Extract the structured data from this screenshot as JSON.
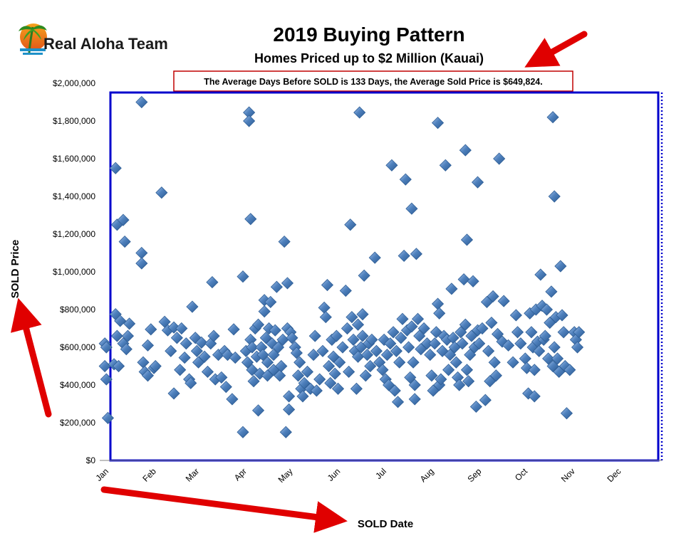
{
  "logo": {
    "text": "Real Aloha Team"
  },
  "chart_data": {
    "type": "scatter",
    "title": "2019 Buying Pattern",
    "subtitle": "Homes Priced up to $2 Million (Kauai)",
    "annotation": "The Average Days Before SOLD is 133 Days, the Average Sold Price is $649,824.",
    "xlabel": "SOLD Date",
    "ylabel": "SOLD Price",
    "ylim": [
      0,
      2000000
    ],
    "y_ticks": [
      0,
      200000,
      400000,
      600000,
      800000,
      1000000,
      1200000,
      1400000,
      1600000,
      1800000,
      2000000
    ],
    "y_tick_labels": [
      "$0",
      "$200,000",
      "$400,000",
      "$600,000",
      "$800,000",
      "$1,000,000",
      "$1,200,000",
      "$1,400,000",
      "$1,600,000",
      "$1,800,000",
      "$2,000,000"
    ],
    "x_tick_labels": [
      "Jan",
      "Feb",
      "Mar",
      "Apr",
      "May",
      "Jun",
      "Jul",
      "Aug",
      "Sep",
      "Oct",
      "Nov",
      "Dec"
    ],
    "x_ticks": [
      "2019-01-01",
      "2019-02-01",
      "2019-03-01",
      "2019-04-01",
      "2019-05-01",
      "2019-06-01",
      "2019-07-01",
      "2019-08-01",
      "2019-09-01",
      "2019-10-01",
      "2019-11-01",
      "2019-12-01"
    ],
    "xlim": [
      "2019-01-01",
      "2019-12-31"
    ],
    "grid": false,
    "marker": "diamond",
    "marker_color": "#4f81bd",
    "plot_border_color": "#0000cc",
    "points": [
      {
        "x": "2019-01-02",
        "y": 620000
      },
      {
        "x": "2019-01-02",
        "y": 500000
      },
      {
        "x": "2019-01-03",
        "y": 430000
      },
      {
        "x": "2019-01-04",
        "y": 225000
      },
      {
        "x": "2019-01-03",
        "y": 600000
      },
      {
        "x": "2019-01-09",
        "y": 1550000
      },
      {
        "x": "2019-01-10",
        "y": 1250000
      },
      {
        "x": "2019-01-09",
        "y": 775000
      },
      {
        "x": "2019-01-10",
        "y": 660000
      },
      {
        "x": "2019-01-08",
        "y": 510000
      },
      {
        "x": "2019-01-11",
        "y": 500000
      },
      {
        "x": "2019-01-14",
        "y": 1275000
      },
      {
        "x": "2019-01-15",
        "y": 1160000
      },
      {
        "x": "2019-01-12",
        "y": 740000
      },
      {
        "x": "2019-01-14",
        "y": 620000
      },
      {
        "x": "2019-01-16",
        "y": 590000
      },
      {
        "x": "2019-01-17",
        "y": 660000
      },
      {
        "x": "2019-01-18",
        "y": 725000
      },
      {
        "x": "2019-01-26",
        "y": 1900000
      },
      {
        "x": "2019-01-26",
        "y": 1100000
      },
      {
        "x": "2019-01-26",
        "y": 1045000
      },
      {
        "x": "2019-01-27",
        "y": 520000
      },
      {
        "x": "2019-01-28",
        "y": 470000
      },
      {
        "x": "2019-01-30",
        "y": 610000
      },
      {
        "x": "2019-01-30",
        "y": 450000
      },
      {
        "x": "2019-02-01",
        "y": 695000
      },
      {
        "x": "2019-02-03",
        "y": 490000
      },
      {
        "x": "2019-02-04",
        "y": 500000
      },
      {
        "x": "2019-02-08",
        "y": 1420000
      },
      {
        "x": "2019-02-10",
        "y": 735000
      },
      {
        "x": "2019-02-12",
        "y": 690000
      },
      {
        "x": "2019-02-14",
        "y": 580000
      },
      {
        "x": "2019-02-16",
        "y": 355000
      },
      {
        "x": "2019-02-16",
        "y": 705000
      },
      {
        "x": "2019-02-18",
        "y": 650000
      },
      {
        "x": "2019-02-20",
        "y": 480000
      },
      {
        "x": "2019-02-21",
        "y": 700000
      },
      {
        "x": "2019-02-23",
        "y": 545000
      },
      {
        "x": "2019-02-24",
        "y": 620000
      },
      {
        "x": "2019-02-26",
        "y": 430000
      },
      {
        "x": "2019-02-27",
        "y": 410000
      },
      {
        "x": "2019-02-28",
        "y": 815000
      },
      {
        "x": "2019-03-02",
        "y": 650000
      },
      {
        "x": "2019-03-03",
        "y": 580000
      },
      {
        "x": "2019-03-04",
        "y": 520000
      },
      {
        "x": "2019-03-06",
        "y": 625000
      },
      {
        "x": "2019-03-08",
        "y": 550000
      },
      {
        "x": "2019-03-10",
        "y": 470000
      },
      {
        "x": "2019-03-12",
        "y": 620000
      },
      {
        "x": "2019-03-13",
        "y": 945000
      },
      {
        "x": "2019-03-14",
        "y": 660000
      },
      {
        "x": "2019-03-15",
        "y": 430000
      },
      {
        "x": "2019-03-17",
        "y": 560000
      },
      {
        "x": "2019-03-19",
        "y": 440000
      },
      {
        "x": "2019-03-21",
        "y": 580000
      },
      {
        "x": "2019-03-22",
        "y": 390000
      },
      {
        "x": "2019-03-23",
        "y": 560000
      },
      {
        "x": "2019-03-26",
        "y": 325000
      },
      {
        "x": "2019-03-27",
        "y": 695000
      },
      {
        "x": "2019-03-28",
        "y": 545000
      },
      {
        "x": "2019-04-02",
        "y": 150000
      },
      {
        "x": "2019-04-02",
        "y": 975000
      },
      {
        "x": "2019-04-04",
        "y": 580000
      },
      {
        "x": "2019-04-05",
        "y": 520000
      },
      {
        "x": "2019-04-06",
        "y": 1845000
      },
      {
        "x": "2019-04-06",
        "y": 1800000
      },
      {
        "x": "2019-04-07",
        "y": 1280000
      },
      {
        "x": "2019-04-07",
        "y": 640000
      },
      {
        "x": "2019-04-08",
        "y": 600000
      },
      {
        "x": "2019-04-08",
        "y": 480000
      },
      {
        "x": "2019-04-09",
        "y": 420000
      },
      {
        "x": "2019-04-10",
        "y": 700000
      },
      {
        "x": "2019-04-11",
        "y": 550000
      },
      {
        "x": "2019-04-12",
        "y": 265000
      },
      {
        "x": "2019-04-12",
        "y": 720000
      },
      {
        "x": "2019-04-13",
        "y": 460000
      },
      {
        "x": "2019-04-14",
        "y": 600000
      },
      {
        "x": "2019-04-15",
        "y": 560000
      },
      {
        "x": "2019-04-16",
        "y": 850000
      },
      {
        "x": "2019-04-16",
        "y": 790000
      },
      {
        "x": "2019-04-17",
        "y": 650000
      },
      {
        "x": "2019-04-18",
        "y": 520000
      },
      {
        "x": "2019-04-18",
        "y": 450000
      },
      {
        "x": "2019-04-19",
        "y": 700000
      },
      {
        "x": "2019-04-20",
        "y": 840000
      },
      {
        "x": "2019-04-21",
        "y": 620000
      },
      {
        "x": "2019-04-22",
        "y": 560000
      },
      {
        "x": "2019-04-22",
        "y": 480000
      },
      {
        "x": "2019-04-23",
        "y": 690000
      },
      {
        "x": "2019-04-24",
        "y": 920000
      },
      {
        "x": "2019-04-25",
        "y": 600000
      },
      {
        "x": "2019-04-26",
        "y": 450000
      },
      {
        "x": "2019-04-27",
        "y": 500000
      },
      {
        "x": "2019-04-28",
        "y": 640000
      },
      {
        "x": "2019-04-29",
        "y": 1160000
      },
      {
        "x": "2019-04-30",
        "y": 150000
      },
      {
        "x": "2019-05-01",
        "y": 940000
      },
      {
        "x": "2019-05-01",
        "y": 700000
      },
      {
        "x": "2019-05-02",
        "y": 270000
      },
      {
        "x": "2019-05-02",
        "y": 340000
      },
      {
        "x": "2019-05-03",
        "y": 680000
      },
      {
        "x": "2019-05-04",
        "y": 650000
      },
      {
        "x": "2019-05-06",
        "y": 600000
      },
      {
        "x": "2019-05-07",
        "y": 570000
      },
      {
        "x": "2019-05-08",
        "y": 450000
      },
      {
        "x": "2019-05-09",
        "y": 520000
      },
      {
        "x": "2019-05-10",
        "y": 380000
      },
      {
        "x": "2019-05-11",
        "y": 340000
      },
      {
        "x": "2019-05-12",
        "y": 410000
      },
      {
        "x": "2019-05-14",
        "y": 470000
      },
      {
        "x": "2019-05-16",
        "y": 380000
      },
      {
        "x": "2019-05-18",
        "y": 560000
      },
      {
        "x": "2019-05-19",
        "y": 660000
      },
      {
        "x": "2019-05-20",
        "y": 370000
      },
      {
        "x": "2019-05-22",
        "y": 430000
      },
      {
        "x": "2019-05-24",
        "y": 580000
      },
      {
        "x": "2019-05-25",
        "y": 810000
      },
      {
        "x": "2019-05-26",
        "y": 760000
      },
      {
        "x": "2019-05-27",
        "y": 930000
      },
      {
        "x": "2019-05-28",
        "y": 500000
      },
      {
        "x": "2019-05-29",
        "y": 410000
      },
      {
        "x": "2019-05-30",
        "y": 640000
      },
      {
        "x": "2019-05-31",
        "y": 550000
      },
      {
        "x": "2019-06-01",
        "y": 460000
      },
      {
        "x": "2019-06-02",
        "y": 660000
      },
      {
        "x": "2019-06-03",
        "y": 380000
      },
      {
        "x": "2019-06-04",
        "y": 520000
      },
      {
        "x": "2019-06-06",
        "y": 600000
      },
      {
        "x": "2019-06-08",
        "y": 900000
      },
      {
        "x": "2019-06-09",
        "y": 700000
      },
      {
        "x": "2019-06-10",
        "y": 470000
      },
      {
        "x": "2019-06-11",
        "y": 1250000
      },
      {
        "x": "2019-06-12",
        "y": 760000
      },
      {
        "x": "2019-06-13",
        "y": 640000
      },
      {
        "x": "2019-06-14",
        "y": 580000
      },
      {
        "x": "2019-06-15",
        "y": 380000
      },
      {
        "x": "2019-06-16",
        "y": 720000
      },
      {
        "x": "2019-06-16",
        "y": 550000
      },
      {
        "x": "2019-06-17",
        "y": 1845000
      },
      {
        "x": "2019-06-18",
        "y": 600000
      },
      {
        "x": "2019-06-19",
        "y": 660000
      },
      {
        "x": "2019-06-19",
        "y": 775000
      },
      {
        "x": "2019-06-20",
        "y": 980000
      },
      {
        "x": "2019-06-21",
        "y": 450000
      },
      {
        "x": "2019-06-22",
        "y": 560000
      },
      {
        "x": "2019-06-23",
        "y": 620000
      },
      {
        "x": "2019-06-24",
        "y": 500000
      },
      {
        "x": "2019-06-25",
        "y": 640000
      },
      {
        "x": "2019-06-27",
        "y": 1075000
      },
      {
        "x": "2019-06-28",
        "y": 580000
      },
      {
        "x": "2019-06-30",
        "y": 520000
      },
      {
        "x": "2019-07-02",
        "y": 480000
      },
      {
        "x": "2019-07-03",
        "y": 640000
      },
      {
        "x": "2019-07-04",
        "y": 430000
      },
      {
        "x": "2019-07-05",
        "y": 560000
      },
      {
        "x": "2019-07-06",
        "y": 400000
      },
      {
        "x": "2019-07-07",
        "y": 620000
      },
      {
        "x": "2019-07-08",
        "y": 1565000
      },
      {
        "x": "2019-07-09",
        "y": 680000
      },
      {
        "x": "2019-07-10",
        "y": 370000
      },
      {
        "x": "2019-07-11",
        "y": 580000
      },
      {
        "x": "2019-07-12",
        "y": 310000
      },
      {
        "x": "2019-07-13",
        "y": 520000
      },
      {
        "x": "2019-07-14",
        "y": 650000
      },
      {
        "x": "2019-07-15",
        "y": 750000
      },
      {
        "x": "2019-07-16",
        "y": 1085000
      },
      {
        "x": "2019-07-17",
        "y": 1490000
      },
      {
        "x": "2019-07-18",
        "y": 690000
      },
      {
        "x": "2019-07-19",
        "y": 600000
      },
      {
        "x": "2019-07-20",
        "y": 440000
      },
      {
        "x": "2019-07-21",
        "y": 1335000
      },
      {
        "x": "2019-07-21",
        "y": 710000
      },
      {
        "x": "2019-07-22",
        "y": 520000
      },
      {
        "x": "2019-07-23",
        "y": 400000
      },
      {
        "x": "2019-07-23",
        "y": 325000
      },
      {
        "x": "2019-07-24",
        "y": 1095000
      },
      {
        "x": "2019-07-25",
        "y": 750000
      },
      {
        "x": "2019-07-26",
        "y": 660000
      },
      {
        "x": "2019-07-27",
        "y": 590000
      },
      {
        "x": "2019-07-29",
        "y": 700000
      },
      {
        "x": "2019-07-31",
        "y": 620000
      },
      {
        "x": "2019-08-02",
        "y": 560000
      },
      {
        "x": "2019-08-03",
        "y": 450000
      },
      {
        "x": "2019-08-04",
        "y": 370000
      },
      {
        "x": "2019-08-05",
        "y": 620000
      },
      {
        "x": "2019-08-06",
        "y": 680000
      },
      {
        "x": "2019-08-07",
        "y": 1790000
      },
      {
        "x": "2019-08-07",
        "y": 830000
      },
      {
        "x": "2019-08-08",
        "y": 780000
      },
      {
        "x": "2019-08-08",
        "y": 400000
      },
      {
        "x": "2019-08-09",
        "y": 430000
      },
      {
        "x": "2019-08-10",
        "y": 580000
      },
      {
        "x": "2019-08-11",
        "y": 660000
      },
      {
        "x": "2019-08-12",
        "y": 1565000
      },
      {
        "x": "2019-08-13",
        "y": 640000
      },
      {
        "x": "2019-08-14",
        "y": 480000
      },
      {
        "x": "2019-08-15",
        "y": 560000
      },
      {
        "x": "2019-08-16",
        "y": 910000
      },
      {
        "x": "2019-08-17",
        "y": 650000
      },
      {
        "x": "2019-08-18",
        "y": 600000
      },
      {
        "x": "2019-08-19",
        "y": 520000
      },
      {
        "x": "2019-08-20",
        "y": 440000
      },
      {
        "x": "2019-08-21",
        "y": 400000
      },
      {
        "x": "2019-08-22",
        "y": 680000
      },
      {
        "x": "2019-08-23",
        "y": 620000
      },
      {
        "x": "2019-08-24",
        "y": 960000
      },
      {
        "x": "2019-08-25",
        "y": 1645000
      },
      {
        "x": "2019-08-25",
        "y": 720000
      },
      {
        "x": "2019-08-26",
        "y": 1170000
      },
      {
        "x": "2019-08-26",
        "y": 480000
      },
      {
        "x": "2019-08-27",
        "y": 420000
      },
      {
        "x": "2019-08-28",
        "y": 560000
      },
      {
        "x": "2019-08-29",
        "y": 660000
      },
      {
        "x": "2019-08-30",
        "y": 950000
      },
      {
        "x": "2019-08-31",
        "y": 600000
      },
      {
        "x": "2019-09-01",
        "y": 285000
      },
      {
        "x": "2019-09-02",
        "y": 1475000
      },
      {
        "x": "2019-09-02",
        "y": 690000
      },
      {
        "x": "2019-09-03",
        "y": 620000
      },
      {
        "x": "2019-09-05",
        "y": 700000
      },
      {
        "x": "2019-09-07",
        "y": 320000
      },
      {
        "x": "2019-09-08",
        "y": 840000
      },
      {
        "x": "2019-09-09",
        "y": 580000
      },
      {
        "x": "2019-09-10",
        "y": 420000
      },
      {
        "x": "2019-09-11",
        "y": 730000
      },
      {
        "x": "2019-09-12",
        "y": 870000
      },
      {
        "x": "2019-09-13",
        "y": 520000
      },
      {
        "x": "2019-09-14",
        "y": 450000
      },
      {
        "x": "2019-09-15",
        "y": 670000
      },
      {
        "x": "2019-09-16",
        "y": 1600000
      },
      {
        "x": "2019-09-18",
        "y": 630000
      },
      {
        "x": "2019-09-19",
        "y": 845000
      },
      {
        "x": "2019-09-22",
        "y": 610000
      },
      {
        "x": "2019-09-25",
        "y": 520000
      },
      {
        "x": "2019-09-27",
        "y": 770000
      },
      {
        "x": "2019-09-28",
        "y": 680000
      },
      {
        "x": "2019-09-30",
        "y": 620000
      },
      {
        "x": "2019-10-03",
        "y": 540000
      },
      {
        "x": "2019-10-04",
        "y": 490000
      },
      {
        "x": "2019-10-05",
        "y": 355000
      },
      {
        "x": "2019-10-06",
        "y": 780000
      },
      {
        "x": "2019-10-07",
        "y": 680000
      },
      {
        "x": "2019-10-08",
        "y": 600000
      },
      {
        "x": "2019-10-09",
        "y": 340000
      },
      {
        "x": "2019-10-09",
        "y": 480000
      },
      {
        "x": "2019-10-10",
        "y": 800000
      },
      {
        "x": "2019-10-11",
        "y": 630000
      },
      {
        "x": "2019-10-12",
        "y": 580000
      },
      {
        "x": "2019-10-13",
        "y": 985000
      },
      {
        "x": "2019-10-14",
        "y": 820000
      },
      {
        "x": "2019-10-15",
        "y": 640000
      },
      {
        "x": "2019-10-16",
        "y": 660000
      },
      {
        "x": "2019-10-17",
        "y": 800000
      },
      {
        "x": "2019-10-18",
        "y": 540000
      },
      {
        "x": "2019-10-19",
        "y": 730000
      },
      {
        "x": "2019-10-20",
        "y": 895000
      },
      {
        "x": "2019-10-21",
        "y": 500000
      },
      {
        "x": "2019-10-21",
        "y": 1820000
      },
      {
        "x": "2019-10-22",
        "y": 1400000
      },
      {
        "x": "2019-10-22",
        "y": 600000
      },
      {
        "x": "2019-10-23",
        "y": 760000
      },
      {
        "x": "2019-10-24",
        "y": 540000
      },
      {
        "x": "2019-10-25",
        "y": 470000
      },
      {
        "x": "2019-10-26",
        "y": 1030000
      },
      {
        "x": "2019-10-27",
        "y": 770000
      },
      {
        "x": "2019-10-28",
        "y": 680000
      },
      {
        "x": "2019-10-29",
        "y": 500000
      },
      {
        "x": "2019-10-30",
        "y": 250000
      },
      {
        "x": "2019-11-01",
        "y": 480000
      },
      {
        "x": "2019-11-04",
        "y": 680000
      },
      {
        "x": "2019-11-05",
        "y": 640000
      },
      {
        "x": "2019-11-06",
        "y": 600000
      },
      {
        "x": "2019-11-07",
        "y": 680000
      }
    ]
  }
}
